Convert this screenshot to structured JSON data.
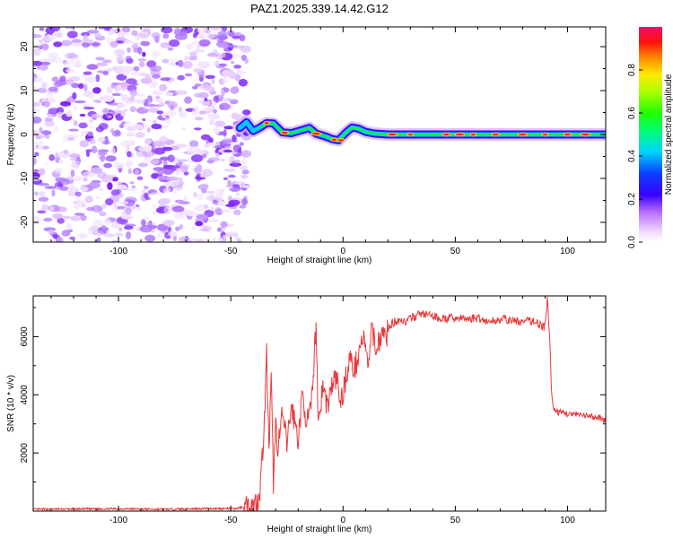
{
  "title": "PAZ1.2025.339.14.42.G12",
  "chart_data": [
    {
      "type": "heatmap",
      "xlabel": "Height of straight line (km)",
      "ylabel": "Frequency (Hz)",
      "xlim": [
        -138,
        117
      ],
      "ylim": [
        -24.5,
        24.5
      ],
      "xticks": [
        -100,
        -50,
        0,
        50,
        100
      ],
      "yticks": [
        -20,
        -10,
        0,
        10,
        20
      ],
      "noise_region_x": [
        -138,
        -46
      ],
      "signal_track": [
        [
          -46,
          1.5
        ],
        [
          -43,
          2.8
        ],
        [
          -40,
          0.8
        ],
        [
          -37,
          1.6
        ],
        [
          -34,
          2.6
        ],
        [
          -31,
          2.5
        ],
        [
          -27,
          0.5
        ],
        [
          -23,
          0.3
        ],
        [
          -19,
          0.9
        ],
        [
          -15,
          1.5
        ],
        [
          -12,
          0.2
        ],
        [
          -8,
          -0.4
        ],
        [
          -5,
          -1.0
        ],
        [
          -2,
          -1.3
        ],
        [
          1,
          0.3
        ],
        [
          4,
          1.6
        ],
        [
          7,
          1.3
        ],
        [
          10,
          0.6
        ],
        [
          14,
          0.2
        ],
        [
          20,
          0.0
        ],
        [
          30,
          0.0
        ],
        [
          50,
          0.0
        ],
        [
          70,
          0.0
        ],
        [
          90,
          0.0
        ],
        [
          117,
          0.0
        ]
      ],
      "colorbar": {
        "label": "Normalized spectral amplitude",
        "range": [
          0,
          1
        ],
        "ticks": [
          0.0,
          0.2,
          0.4,
          0.6,
          0.8
        ],
        "tick_labels": [
          "0.0",
          "0.2",
          "0.4",
          "0.6",
          "0.8"
        ]
      }
    },
    {
      "type": "line",
      "xlabel": "Height of straight line (km)",
      "ylabel": "SNR (10 * v/v)",
      "xlim": [
        -138,
        117
      ],
      "ylim": [
        0,
        7400
      ],
      "xticks": [
        -100,
        -50,
        0,
        50,
        100
      ],
      "yticks": [
        2000,
        4000,
        6000
      ],
      "color": "#e8383b",
      "series": [
        {
          "name": "SNR",
          "points": [
            [
              -138,
              60
            ],
            [
              -120,
              70
            ],
            [
              -100,
              80
            ],
            [
              -80,
              60
            ],
            [
              -60,
              90
            ],
            [
              -48,
              80
            ],
            [
              -44,
              150
            ],
            [
              -40,
              200
            ],
            [
              -38,
              300
            ],
            [
              -37,
              800
            ],
            [
              -36,
              1800
            ],
            [
              -35,
              3200
            ],
            [
              -34,
              5400
            ],
            [
              -33,
              2000
            ],
            [
              -32,
              4500
            ],
            [
              -31,
              1000
            ],
            [
              -30,
              3000
            ],
            [
              -29,
              2200
            ],
            [
              -27,
              3300
            ],
            [
              -25,
              2300
            ],
            [
              -23,
              3600
            ],
            [
              -20,
              2500
            ],
            [
              -18,
              4000
            ],
            [
              -16,
              3000
            ],
            [
              -14,
              3600
            ],
            [
              -12,
              6500
            ],
            [
              -11,
              3000
            ],
            [
              -9,
              4300
            ],
            [
              -7,
              3600
            ],
            [
              -5,
              4300
            ],
            [
              -3,
              4600
            ],
            [
              -1,
              3700
            ],
            [
              1,
              4500
            ],
            [
              3,
              5300
            ],
            [
              5,
              4800
            ],
            [
              7,
              5500
            ],
            [
              9,
              6000
            ],
            [
              11,
              5000
            ],
            [
              13,
              6200
            ],
            [
              15,
              5600
            ],
            [
              17,
              6100
            ],
            [
              19,
              6000
            ],
            [
              21,
              6400
            ],
            [
              25,
              6600
            ],
            [
              28,
              6500
            ],
            [
              32,
              6700
            ],
            [
              35,
              6800
            ],
            [
              40,
              6700
            ],
            [
              45,
              6600
            ],
            [
              50,
              6650
            ],
            [
              55,
              6600
            ],
            [
              60,
              6650
            ],
            [
              65,
              6500
            ],
            [
              70,
              6600
            ],
            [
              75,
              6550
            ],
            [
              80,
              6500
            ],
            [
              85,
              6550
            ],
            [
              88,
              6400
            ],
            [
              90,
              6300
            ],
            [
              91,
              7300
            ],
            [
              92,
              6000
            ],
            [
              93,
              3900
            ],
            [
              94,
              3500
            ],
            [
              96,
              3400
            ],
            [
              100,
              3350
            ],
            [
              105,
              3300
            ],
            [
              110,
              3250
            ],
            [
              115,
              3200
            ],
            [
              117,
              3100
            ]
          ]
        }
      ]
    }
  ]
}
